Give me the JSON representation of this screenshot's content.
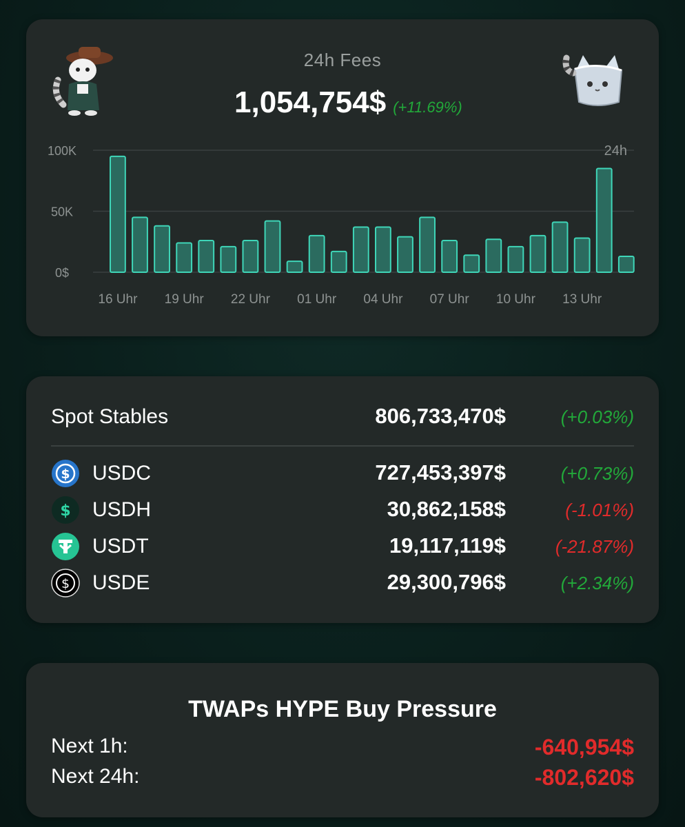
{
  "fees": {
    "title": "24h Fees",
    "value": "1,054,754$",
    "change": "(+11.69%)"
  },
  "chart_data": {
    "type": "bar",
    "yticks": [
      "100K",
      "50K",
      "0$"
    ],
    "ylim": [
      0,
      100000
    ],
    "corner_label": "24h",
    "xtick_labels": [
      "16 Uhr",
      "19 Uhr",
      "22 Uhr",
      "01 Uhr",
      "04 Uhr",
      "07 Uhr",
      "10 Uhr",
      "13 Uhr"
    ],
    "values": [
      95000,
      45000,
      38000,
      24000,
      26000,
      21000,
      26000,
      42000,
      9000,
      30000,
      17000,
      37000,
      37000,
      29000,
      45000,
      26000,
      14000,
      27000,
      21000,
      30000,
      41000,
      28000,
      85000,
      13000
    ],
    "colors": {
      "bar_fill": "#2b6b5f",
      "bar_stroke": "#3fd6b8",
      "grid": "#3a4140",
      "tick": "#8e9392"
    }
  },
  "stables": {
    "total": {
      "label": "Spot Stables",
      "value": "806,733,470$",
      "change": "(+0.03%)",
      "trend": "pos"
    },
    "items": [
      {
        "icon": "usdc-icon",
        "label": "USDC",
        "value": "727,453,397$",
        "change": "(+0.73%)",
        "trend": "pos"
      },
      {
        "icon": "usdh-icon",
        "label": "USDH",
        "value": "30,862,158$",
        "change": "(-1.01%)",
        "trend": "neg"
      },
      {
        "icon": "usdt-icon",
        "label": "USDT",
        "value": "19,117,119$",
        "change": "(-21.87%)",
        "trend": "neg"
      },
      {
        "icon": "usde-icon",
        "label": "USDE",
        "value": "29,300,796$",
        "change": "(+2.34%)",
        "trend": "pos"
      }
    ]
  },
  "twap": {
    "title": "TWAPs HYPE Buy Pressure",
    "rows": [
      {
        "label": "Next 1h:",
        "value": "-640,954$"
      },
      {
        "label": "Next 24h:",
        "value": "-802,620$"
      }
    ]
  },
  "colors": {
    "positive": "#22a93a",
    "negative": "#e12b2b",
    "card_bg": "#232928",
    "page_bg": "#0a1f1c"
  }
}
